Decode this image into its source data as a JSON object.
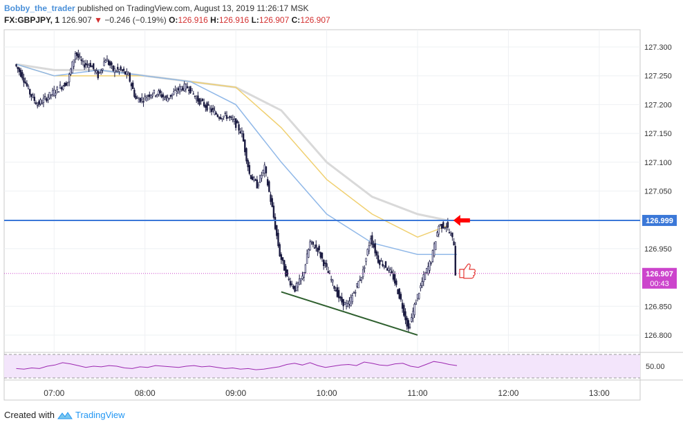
{
  "header": {
    "user": "Bobby_the_trader",
    "published_text": "published on TradingView.com, August 13, 2019 11:26:17 MSK",
    "symbol": "FX:GBPJPY, 1",
    "price": "126.907",
    "change": "−0.246 (−0.19%)",
    "o_label": "O:",
    "o_value": "126.916",
    "h_label": "H:",
    "h_value": "126.916",
    "l_label": "L:",
    "l_value": "126.907",
    "c_label": "C:",
    "c_value": "126.907"
  },
  "footer": {
    "created_with": "Created with",
    "brand": "TradingView"
  },
  "colors": {
    "bull": "#e8e8ff",
    "bear": "#1a1a40",
    "ema_fast": "#90b8e8",
    "ema_mid": "#f0d070",
    "ema_slow": "#d9d9d9",
    "resistance": "#3b78d8",
    "support": "#2e5f2e",
    "current_price": "#cc44cc",
    "rsi_line": "#9c27b0",
    "arrow": "#ff0000"
  },
  "chart_data": {
    "type": "candlestick",
    "symbol": "GBPJPY",
    "timeframe": "1",
    "x_ticks": [
      "07:00",
      "08:00",
      "09:00",
      "10:00",
      "11:00",
      "12:00",
      "13:00"
    ],
    "y_ticks": [
      "127.300",
      "127.250",
      "127.200",
      "127.150",
      "127.100",
      "127.050",
      "126.999",
      "126.950",
      "126.907",
      "126.850",
      "126.800"
    ],
    "ylim": [
      126.77,
      127.33
    ],
    "resistance_level": 126.999,
    "resistance_label": "126.999",
    "current_price": 126.907,
    "current_price_label": "126.907",
    "countdown": "00:43",
    "support_trendline": {
      "from": [
        "09:30",
        126.875
      ],
      "to": [
        "11:00",
        126.8
      ]
    },
    "price_path": [
      [
        "06:35",
        127.27
      ],
      [
        "06:40",
        127.25
      ],
      [
        "06:45",
        127.22
      ],
      [
        "06:50",
        127.2
      ],
      [
        "06:55",
        127.21
      ],
      [
        "07:00",
        127.22
      ],
      [
        "07:05",
        127.23
      ],
      [
        "07:10",
        127.24
      ],
      [
        "07:15",
        127.29
      ],
      [
        "07:20",
        127.27
      ],
      [
        "07:25",
        127.27
      ],
      [
        "07:30",
        127.25
      ],
      [
        "07:35",
        127.28
      ],
      [
        "07:40",
        127.26
      ],
      [
        "07:45",
        127.26
      ],
      [
        "07:50",
        127.25
      ],
      [
        "07:55",
        127.21
      ],
      [
        "08:00",
        127.21
      ],
      [
        "08:05",
        127.22
      ],
      [
        "08:10",
        127.22
      ],
      [
        "08:15",
        127.21
      ],
      [
        "08:20",
        127.22
      ],
      [
        "08:25",
        127.23
      ],
      [
        "08:30",
        127.23
      ],
      [
        "08:35",
        127.21
      ],
      [
        "08:40",
        127.2
      ],
      [
        "08:45",
        127.19
      ],
      [
        "08:50",
        127.18
      ],
      [
        "08:55",
        127.18
      ],
      [
        "09:00",
        127.17
      ],
      [
        "09:05",
        127.15
      ],
      [
        "09:10",
        127.08
      ],
      [
        "09:15",
        127.06
      ],
      [
        "09:20",
        127.09
      ],
      [
        "09:25",
        127.02
      ],
      [
        "09:30",
        126.94
      ],
      [
        "09:35",
        126.9
      ],
      [
        "09:40",
        126.88
      ],
      [
        "09:45",
        126.9
      ],
      [
        "09:50",
        126.96
      ],
      [
        "09:55",
        126.95
      ],
      [
        "10:00",
        126.92
      ],
      [
        "10:05",
        126.89
      ],
      [
        "10:10",
        126.86
      ],
      [
        "10:15",
        126.85
      ],
      [
        "10:20",
        126.88
      ],
      [
        "10:25",
        126.91
      ],
      [
        "10:30",
        126.97
      ],
      [
        "10:35",
        126.93
      ],
      [
        "10:40",
        126.92
      ],
      [
        "10:45",
        126.9
      ],
      [
        "10:50",
        126.86
      ],
      [
        "10:55",
        126.81
      ],
      [
        "11:00",
        126.86
      ],
      [
        "11:05",
        126.9
      ],
      [
        "11:10",
        126.93
      ],
      [
        "11:15",
        126.99
      ],
      [
        "11:20",
        126.99
      ],
      [
        "11:25",
        126.96
      ],
      [
        "11:26",
        126.907
      ]
    ],
    "ema_fast_path": [
      [
        "06:35",
        127.27
      ],
      [
        "07:00",
        127.25
      ],
      [
        "07:30",
        127.26
      ],
      [
        "08:00",
        127.25
      ],
      [
        "08:30",
        127.24
      ],
      [
        "09:00",
        127.2
      ],
      [
        "09:30",
        127.1
      ],
      [
        "10:00",
        127.01
      ],
      [
        "10:30",
        126.96
      ],
      [
        "11:00",
        126.94
      ],
      [
        "11:26",
        126.94
      ]
    ],
    "ema_mid_path": [
      [
        "06:35",
        127.27
      ],
      [
        "07:00",
        127.25
      ],
      [
        "07:30",
        127.25
      ],
      [
        "08:00",
        127.25
      ],
      [
        "08:30",
        127.24
      ],
      [
        "09:00",
        127.23
      ],
      [
        "09:30",
        127.16
      ],
      [
        "10:00",
        127.07
      ],
      [
        "10:30",
        127.01
      ],
      [
        "11:00",
        126.97
      ],
      [
        "11:20",
        126.99
      ]
    ],
    "ema_slow_path": [
      [
        "06:35",
        127.27
      ],
      [
        "07:00",
        127.26
      ],
      [
        "07:30",
        127.26
      ],
      [
        "08:00",
        127.25
      ],
      [
        "08:30",
        127.24
      ],
      [
        "09:00",
        127.23
      ],
      [
        "09:30",
        127.19
      ],
      [
        "10:00",
        127.1
      ],
      [
        "10:30",
        127.04
      ],
      [
        "11:00",
        127.01
      ],
      [
        "11:20",
        126.999
      ]
    ],
    "rsi": {
      "ytick": "50.00",
      "values": [
        46,
        45,
        47,
        46,
        50,
        52,
        56,
        54,
        51,
        48,
        50,
        49,
        51,
        50,
        47,
        46,
        49,
        48,
        51,
        50,
        49,
        48,
        50,
        51,
        49,
        50,
        48,
        46,
        47,
        45,
        46,
        44,
        45,
        47,
        49,
        53,
        55,
        52,
        56,
        51,
        48,
        50,
        52,
        53,
        51,
        57,
        55,
        52,
        51,
        54,
        55,
        50,
        48,
        53,
        58,
        56,
        53,
        51
      ]
    }
  }
}
